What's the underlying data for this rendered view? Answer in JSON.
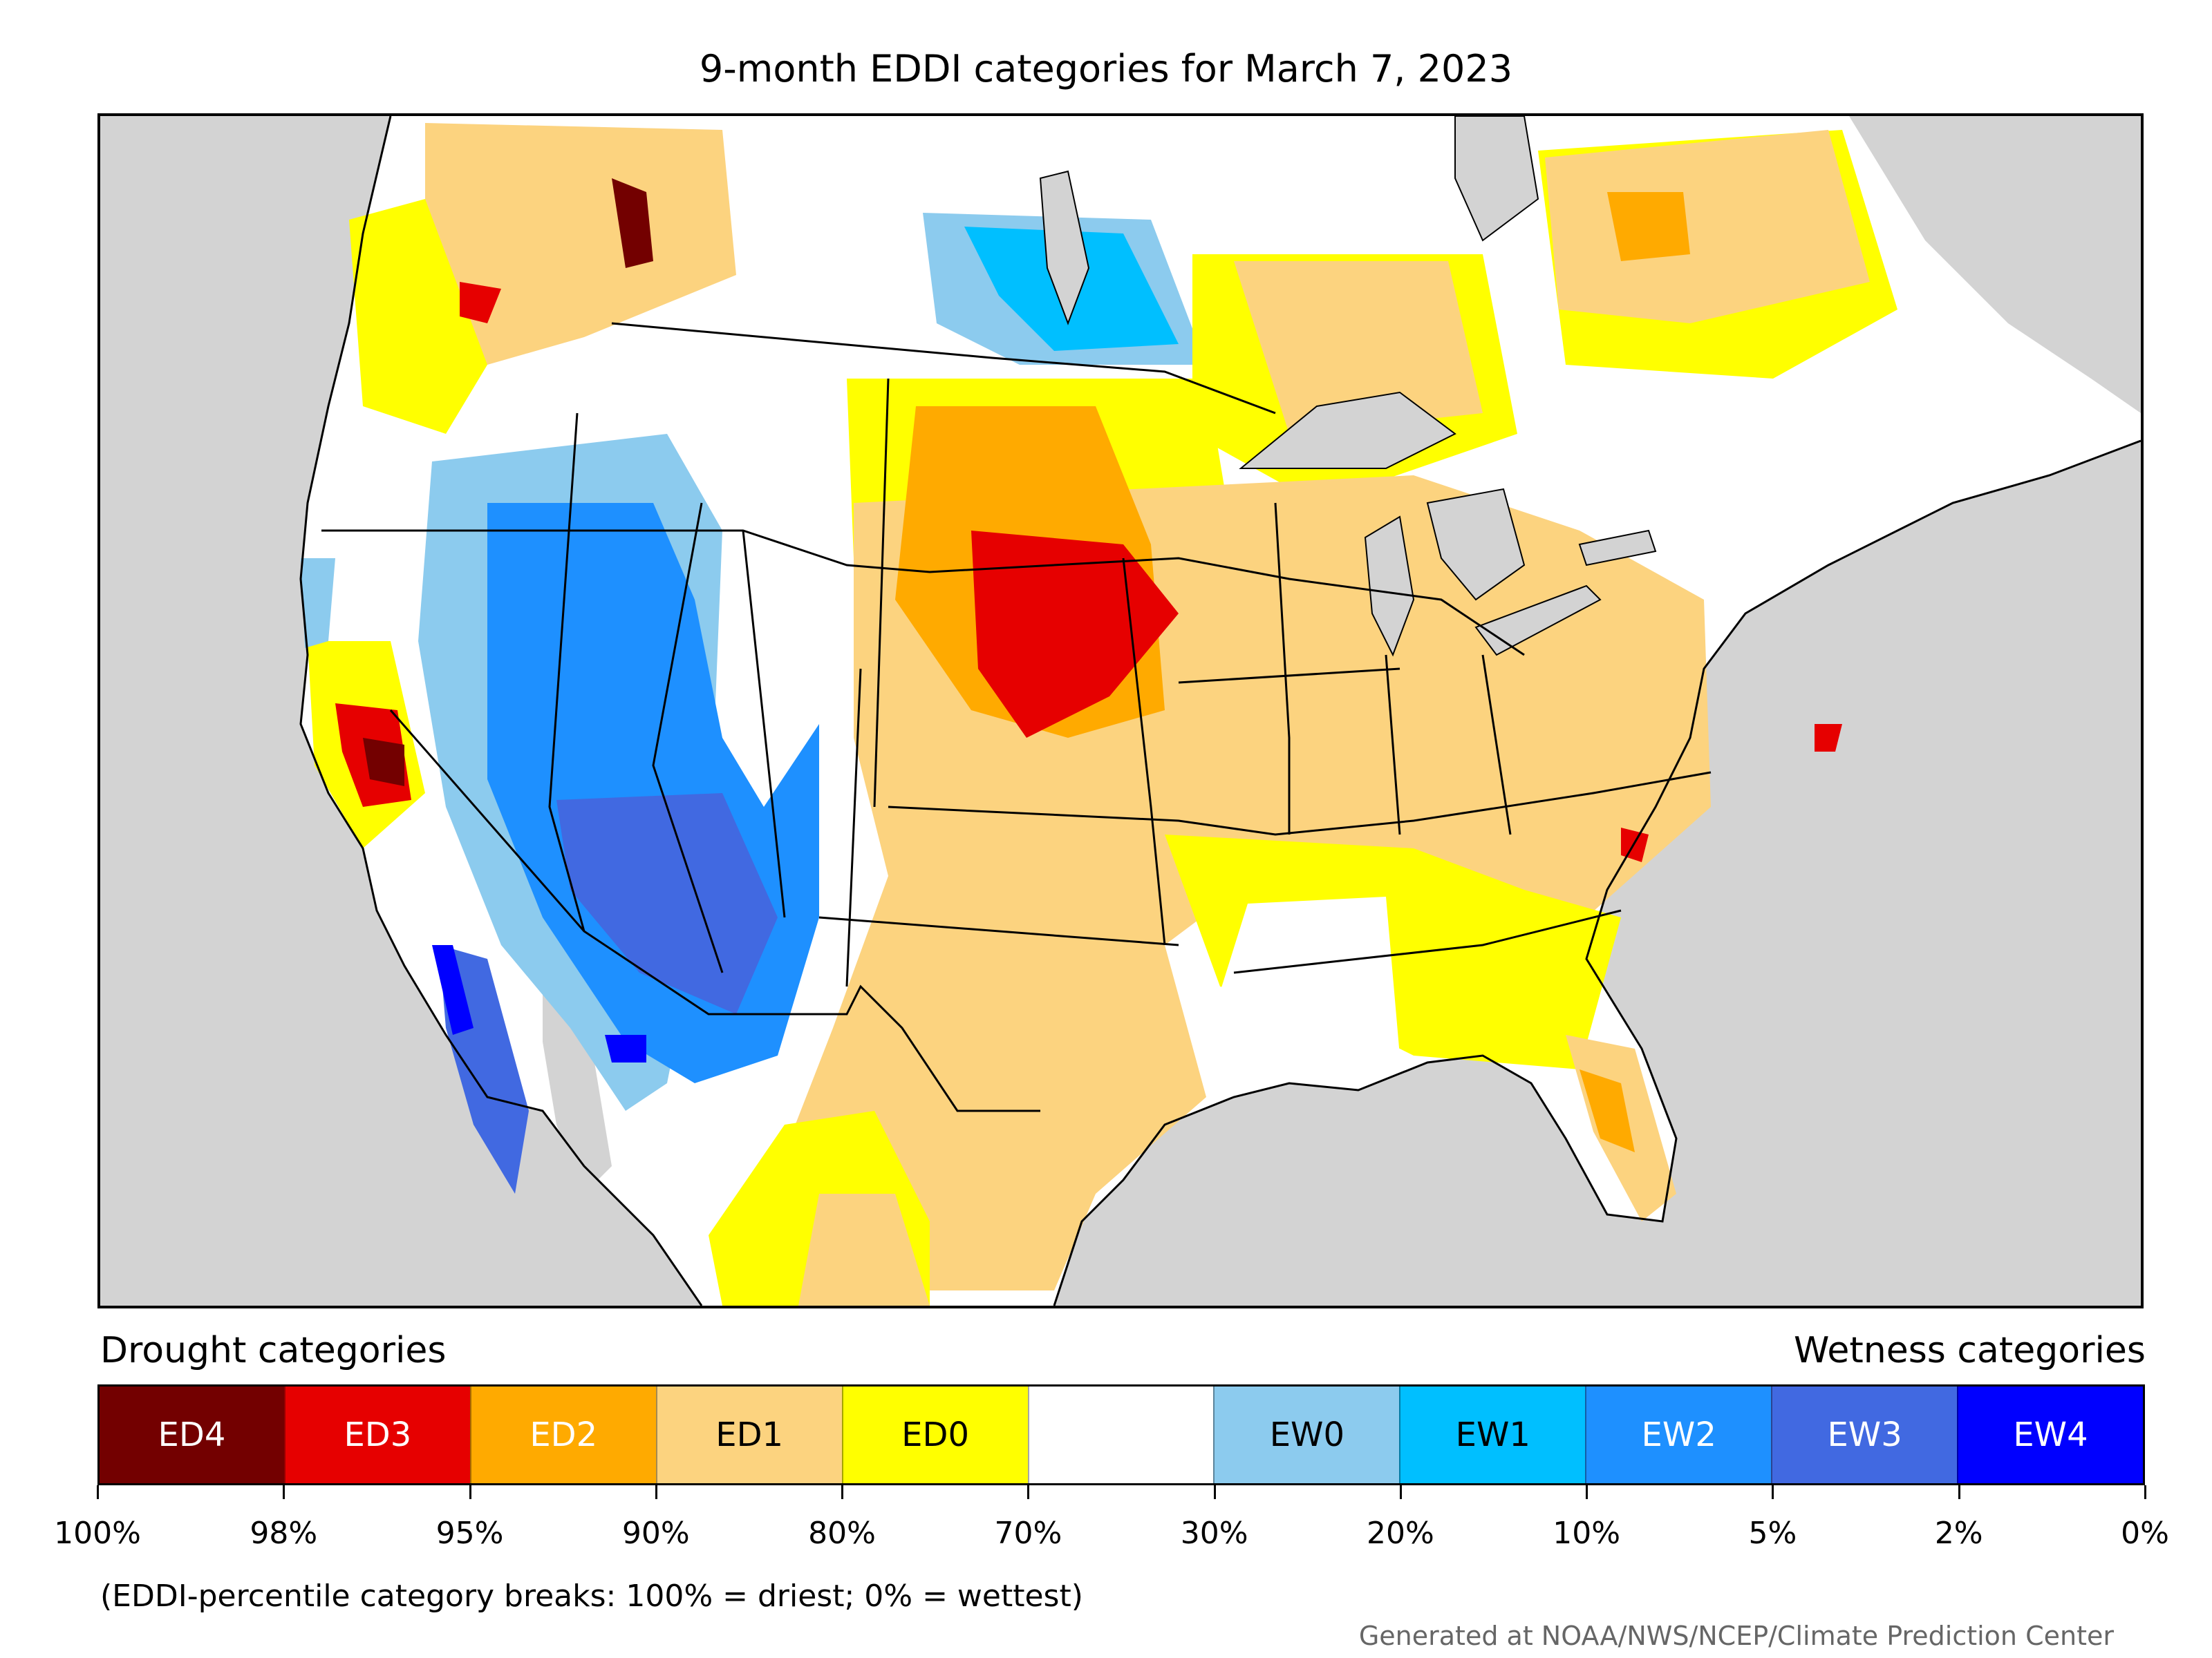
{
  "title": "9-month EDDI categories for March 7, 2023",
  "legend": {
    "drought_label": "Drought categories",
    "wetness_label": "Wetness categories",
    "categories": [
      {
        "label": "ED4",
        "color": "#730000",
        "text_color": "#ffffff"
      },
      {
        "label": "ED3",
        "color": "#e60000",
        "text_color": "#ffffff"
      },
      {
        "label": "ED2",
        "color": "#ffaa00",
        "text_color": "#ffffff"
      },
      {
        "label": "ED1",
        "color": "#fcd37f",
        "text_color": "#000000"
      },
      {
        "label": "ED0",
        "color": "#ffff00",
        "text_color": "#000000"
      },
      {
        "label": "",
        "color": "#ffffff",
        "text_color": "#000000"
      },
      {
        "label": "EW0",
        "color": "#8ccbee",
        "text_color": "#000000"
      },
      {
        "label": "EW1",
        "color": "#00bfff",
        "text_color": "#000000"
      },
      {
        "label": "EW2",
        "color": "#1e90ff",
        "text_color": "#ffffff"
      },
      {
        "label": "EW3",
        "color": "#4169e1",
        "text_color": "#ffffff"
      },
      {
        "label": "EW4",
        "color": "#0000ff",
        "text_color": "#ffffff"
      }
    ],
    "ticks": [
      "100%",
      "98%",
      "95%",
      "90%",
      "80%",
      "70%",
      "30%",
      "20%",
      "10%",
      "5%",
      "2%",
      "0%"
    ]
  },
  "note": "(EDDI-percentile category breaks: 100% = driest; 0% = wettest)",
  "credit": "Generated at NOAA/NWS/NCEP/Climate Prediction Center",
  "map": {
    "ocean_color": "#d3d3d3",
    "land_color": "#ffffff",
    "lake_color": "#d3d3d3"
  }
}
